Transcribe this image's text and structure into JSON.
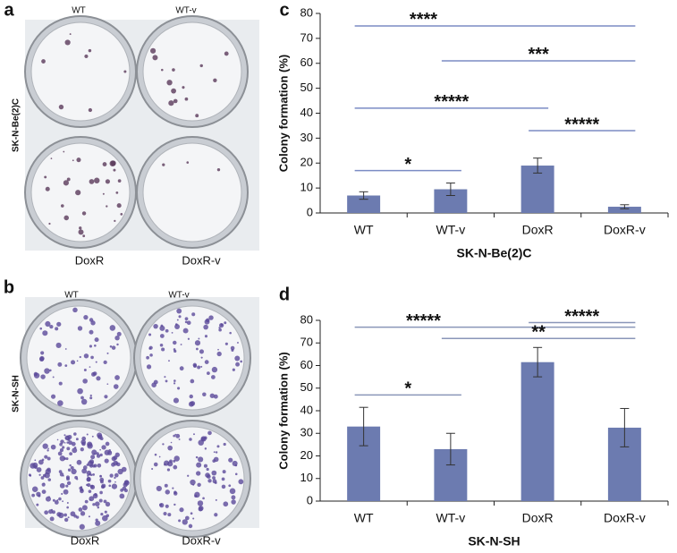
{
  "panels": [
    {
      "letter": "a",
      "cell_line": "SK-N-Be(2)C",
      "plates": [
        "WT",
        "WT-v",
        "DoxR",
        "DoxR-v"
      ]
    },
    {
      "letter": "b",
      "cell_line": "SK-N-SH",
      "plates": [
        "WT",
        "WT-v",
        "DoxR",
        "DoxR-v"
      ]
    }
  ],
  "chart_data": [
    {
      "type": "bar",
      "panel": "c",
      "xlabel": "SK-N-Be(2)C",
      "ylabel": "Colony formation (%)",
      "categories": [
        "WT",
        "WT-v",
        "DoxR",
        "DoxR-v"
      ],
      "values": [
        7,
        9.5,
        19,
        2.5
      ],
      "errors": [
        1.5,
        2.5,
        3,
        0.8
      ],
      "color": "#6c7bb0",
      "line_color": "#7b8cc4",
      "ylim": [
        0,
        80
      ],
      "yticks": [
        0,
        10,
        20,
        30,
        40,
        50,
        60,
        70,
        80
      ],
      "significance": [
        {
          "text": "****",
          "y": 75,
          "between": [
            "WT",
            "DoxR-v"
          ]
        },
        {
          "text": "***",
          "y": 61,
          "between": [
            "WT-v",
            "DoxR-v"
          ]
        },
        {
          "text": "*****",
          "y": 42,
          "between": [
            "WT",
            "DoxR"
          ]
        },
        {
          "text": "*****",
          "y": 33,
          "between": [
            "DoxR",
            "DoxR-v"
          ]
        },
        {
          "text": "*",
          "y": 17,
          "between": [
            "WT",
            "WT-v"
          ]
        }
      ]
    },
    {
      "type": "bar",
      "panel": "d",
      "xlabel": "SK-N-SH",
      "ylabel": "Colony formation (%)",
      "categories": [
        "WT",
        "WT-v",
        "DoxR",
        "DoxR-v"
      ],
      "values": [
        33,
        23,
        61.5,
        32.5
      ],
      "errors": [
        8.5,
        7,
        6.5,
        8.5
      ],
      "color": "#6c7bb0",
      "line_color": "#8a96b8",
      "ylim": [
        0,
        80
      ],
      "yticks": [
        0,
        10,
        20,
        30,
        40,
        50,
        60,
        70,
        80
      ],
      "significance": [
        {
          "text": "*****",
          "y": 77,
          "between": [
            "WT",
            "DoxR-v"
          ]
        },
        {
          "text": "*****",
          "y": 79,
          "between": [
            "DoxR",
            "DoxR-v"
          ]
        },
        {
          "text": "**",
          "y": 72,
          "between": [
            "WT-v",
            "DoxR-v"
          ]
        },
        {
          "text": "*",
          "y": 47,
          "between": [
            "WT",
            "WT-v"
          ]
        }
      ]
    }
  ]
}
